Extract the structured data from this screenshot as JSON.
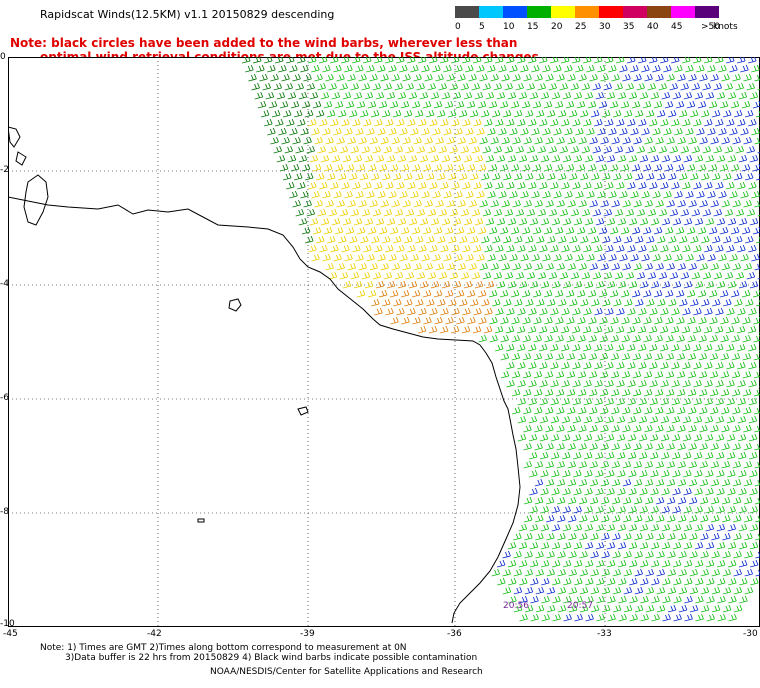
{
  "header": {
    "title": "Rapidscat Winds(12.5KM) v1.1 20150829 descending"
  },
  "legend": {
    "items": [
      {
        "label": "0",
        "color": "#4a4a4a"
      },
      {
        "label": "5",
        "color": "#00c8ff"
      },
      {
        "label": "10",
        "color": "#0050ff"
      },
      {
        "label": "15",
        "color": "#00b000"
      },
      {
        "label": "20",
        "color": "#ffff00"
      },
      {
        "label": "25",
        "color": "#ff9000"
      },
      {
        "label": "30",
        "color": "#ff0000"
      },
      {
        "label": "35",
        "color": "#d00060"
      },
      {
        "label": "40",
        "color": "#8b4513"
      },
      {
        "label": "45",
        "color": "#ff00ff"
      },
      {
        "label": ">50",
        "color": "#5a007a"
      }
    ],
    "unit": "knots"
  },
  "note": {
    "line1": "Note: black circles have been added to the wind barbs, wherever less than",
    "line2": "optimal wind retrieval conditions are met due to the ISS altitude changes."
  },
  "map": {
    "y_axis_labels": [
      "0",
      "-2",
      "-4",
      "-6",
      "-8",
      "-10"
    ],
    "x_axis_labels": [
      "-45",
      "-42",
      "-39",
      "-36",
      "-33",
      "-30"
    ],
    "time_labels": [
      "20:56",
      "20:57"
    ],
    "colors": {
      "coast": "#000000",
      "grid": "#000000",
      "barb_green": "#18c018",
      "barb_darkgreen": "#0a7a0a",
      "barb_blue": "#1030d0",
      "barb_yellow": "#f0d000",
      "barb_orange": "#e08010"
    }
  },
  "footer": {
    "line1": "Note: 1) Times are GMT 2)Times along bottom correspond to measurement at 0N",
    "line2": "3)Data buffer is 22 hrs from 20150829 4) Black wind barbs indicate possible contamination",
    "line3": "NOAA/NESDIS/Center for Satellite Applications and Research"
  }
}
